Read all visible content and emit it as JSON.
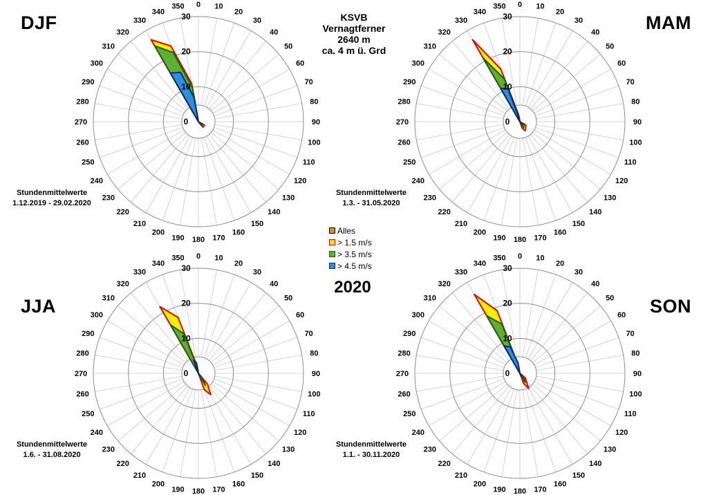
{
  "station": {
    "line1": "KSVB",
    "line2": "Vernagtferner",
    "line3": "2640 m",
    "line4": "ca. 4 m ü. Grd"
  },
  "year_label": "2020",
  "legend": [
    {
      "label": "Alles",
      "color": "#e08a1e",
      "border": "#000000"
    },
    {
      "label": "> 1.5 m/s",
      "color": "#ffee00",
      "border": "#e01010"
    },
    {
      "label": "> 3.5 m/s",
      "color": "#5fb030",
      "border": "#2a5a10"
    },
    {
      "label": "> 4.5 m/s",
      "color": "#2b8fe0",
      "border": "#0b2a6a"
    }
  ],
  "chart_data": [
    {
      "type": "radar",
      "title": "DJF",
      "subtitle_line1": "Stundenmittelwerte",
      "subtitle_line2": "1.12.2019 - 29.02.2020",
      "direction_ticks": [
        "0",
        "10",
        "20",
        "30",
        "40",
        "50",
        "60",
        "70",
        "80",
        "90",
        "100",
        "110",
        "120",
        "130",
        "140",
        "150",
        "160",
        "170",
        "180",
        "190",
        "200",
        "210",
        "220",
        "230",
        "240",
        "250",
        "260",
        "270",
        "280",
        "290",
        "300",
        "310",
        "320",
        "330",
        "340",
        "350"
      ],
      "radial_ticks": [
        "0",
        "10",
        "20",
        "30"
      ],
      "rlim": [
        0,
        30
      ],
      "series": [
        {
          "name": "Alles",
          "points": [
            [
              330,
              27
            ],
            [
              340,
              23
            ],
            [
              350,
              11
            ],
            [
              120,
              2
            ],
            [
              140,
              2
            ]
          ]
        },
        {
          "name": "> 1.5 m/s",
          "points": [
            [
              330,
              27
            ],
            [
              340,
              23
            ],
            [
              350,
              11
            ],
            [
              120,
              2
            ],
            [
              140,
              2
            ]
          ]
        },
        {
          "name": "> 3.5 m/s",
          "points": [
            [
              330,
              25
            ],
            [
              340,
              21
            ],
            [
              350,
              10
            ],
            [
              120,
              1.5
            ],
            [
              140,
              1.5
            ]
          ]
        },
        {
          "name": "> 4.5 m/s",
          "points": [
            [
              330,
              16
            ],
            [
              340,
              15
            ],
            [
              350,
              7
            ],
            [
              130,
              1
            ]
          ]
        }
      ]
    },
    {
      "type": "radar",
      "title": "MAM",
      "subtitle_line1": "Stundenmittelwerte",
      "subtitle_line2": "1.3. - 31.05.2020",
      "direction_ticks": [
        "0",
        "10",
        "20",
        "30",
        "40",
        "50",
        "60",
        "70",
        "80",
        "90",
        "100",
        "110",
        "120",
        "130",
        "140",
        "150",
        "160",
        "170",
        "180",
        "190",
        "200",
        "210",
        "220",
        "230",
        "240",
        "250",
        "260",
        "270",
        "280",
        "290",
        "300",
        "310",
        "320",
        "330",
        "340",
        "350"
      ],
      "radial_ticks": [
        "0",
        "10",
        "20",
        "30"
      ],
      "rlim": [
        0,
        30
      ],
      "series": [
        {
          "name": "Alles",
          "points": [
            [
              330,
              27
            ],
            [
              340,
              16
            ],
            [
              350,
              2
            ],
            [
              120,
              2
            ],
            [
              150,
              3
            ],
            [
              160,
              2
            ]
          ]
        },
        {
          "name": "> 1.5 m/s",
          "points": [
            [
              330,
              27
            ],
            [
              340,
              16
            ],
            [
              350,
              2
            ],
            [
              120,
              2
            ],
            [
              150,
              3
            ],
            [
              160,
              2
            ]
          ]
        },
        {
          "name": "> 3.5 m/s",
          "points": [
            [
              330,
              21
            ],
            [
              340,
              13
            ],
            [
              350,
              1.5
            ],
            [
              120,
              1.5
            ],
            [
              150,
              2
            ]
          ]
        },
        {
          "name": "> 4.5 m/s",
          "points": [
            [
              330,
              11
            ],
            [
              340,
              10
            ],
            [
              350,
              1
            ],
            [
              130,
              1
            ]
          ]
        }
      ]
    },
    {
      "type": "radar",
      "title": "JJA",
      "subtitle_line1": "Stundenmittelwerte",
      "subtitle_line2": "1.6. - 31.08.2020",
      "direction_ticks": [
        "0",
        "10",
        "20",
        "30",
        "40",
        "50",
        "60",
        "70",
        "80",
        "90",
        "100",
        "110",
        "120",
        "130",
        "140",
        "150",
        "160",
        "170",
        "180",
        "190",
        "200",
        "210",
        "220",
        "230",
        "240",
        "250",
        "260",
        "270",
        "280",
        "290",
        "300",
        "310",
        "320",
        "330",
        "340",
        "350"
      ],
      "radial_ticks": [
        "0",
        "10",
        "20",
        "30"
      ],
      "rlim": [
        0,
        30
      ],
      "series": [
        {
          "name": "Alles",
          "points": [
            [
              330,
              22
            ],
            [
              340,
              17
            ],
            [
              350,
              2
            ],
            [
              140,
              4
            ],
            [
              150,
              7
            ],
            [
              160,
              5
            ]
          ]
        },
        {
          "name": "> 1.5 m/s",
          "points": [
            [
              330,
              22
            ],
            [
              340,
              17
            ],
            [
              350,
              2
            ],
            [
              140,
              4
            ],
            [
              150,
              7
            ],
            [
              160,
              5
            ]
          ]
        },
        {
          "name": "> 3.5 m/s",
          "points": [
            [
              330,
              16
            ],
            [
              340,
              12
            ],
            [
              350,
              1.5
            ],
            [
              140,
              2
            ],
            [
              150,
              4
            ]
          ]
        },
        {
          "name": "> 4.5 m/s",
          "points": [
            [
              340,
              4
            ],
            [
              350,
              3
            ],
            [
              150,
              1
            ]
          ]
        }
      ]
    },
    {
      "type": "radar",
      "title": "SON",
      "subtitle_line1": "Stundenmittelwerte",
      "subtitle_line2": "1.1. - 30.11.2020",
      "direction_ticks": [
        "0",
        "10",
        "20",
        "30",
        "40",
        "50",
        "60",
        "70",
        "80",
        "90",
        "100",
        "110",
        "120",
        "130",
        "140",
        "150",
        "160",
        "170",
        "180",
        "190",
        "200",
        "210",
        "220",
        "230",
        "240",
        "250",
        "260",
        "270",
        "280",
        "290",
        "300",
        "310",
        "320",
        "330",
        "340",
        "350"
      ],
      "radial_ticks": [
        "0",
        "10",
        "20",
        "30"
      ],
      "rlim": [
        0,
        30
      ],
      "series": [
        {
          "name": "Alles",
          "points": [
            [
              330,
              26
            ],
            [
              340,
              19
            ],
            [
              350,
              2
            ],
            [
              130,
              2
            ],
            [
              150,
              5
            ],
            [
              160,
              3
            ]
          ]
        },
        {
          "name": "> 1.5 m/s",
          "points": [
            [
              330,
              26
            ],
            [
              340,
              19
            ],
            [
              350,
              2
            ],
            [
              130,
              2
            ],
            [
              150,
              5
            ],
            [
              160,
              3
            ]
          ]
        },
        {
          "name": "> 3.5 m/s",
          "points": [
            [
              330,
              19
            ],
            [
              340,
              15
            ],
            [
              350,
              1.5
            ],
            [
              140,
              2
            ],
            [
              150,
              3
            ]
          ]
        },
        {
          "name": "> 4.5 m/s",
          "points": [
            [
              330,
              9
            ],
            [
              340,
              8
            ],
            [
              350,
              3
            ],
            [
              140,
              1
            ]
          ]
        }
      ]
    }
  ]
}
